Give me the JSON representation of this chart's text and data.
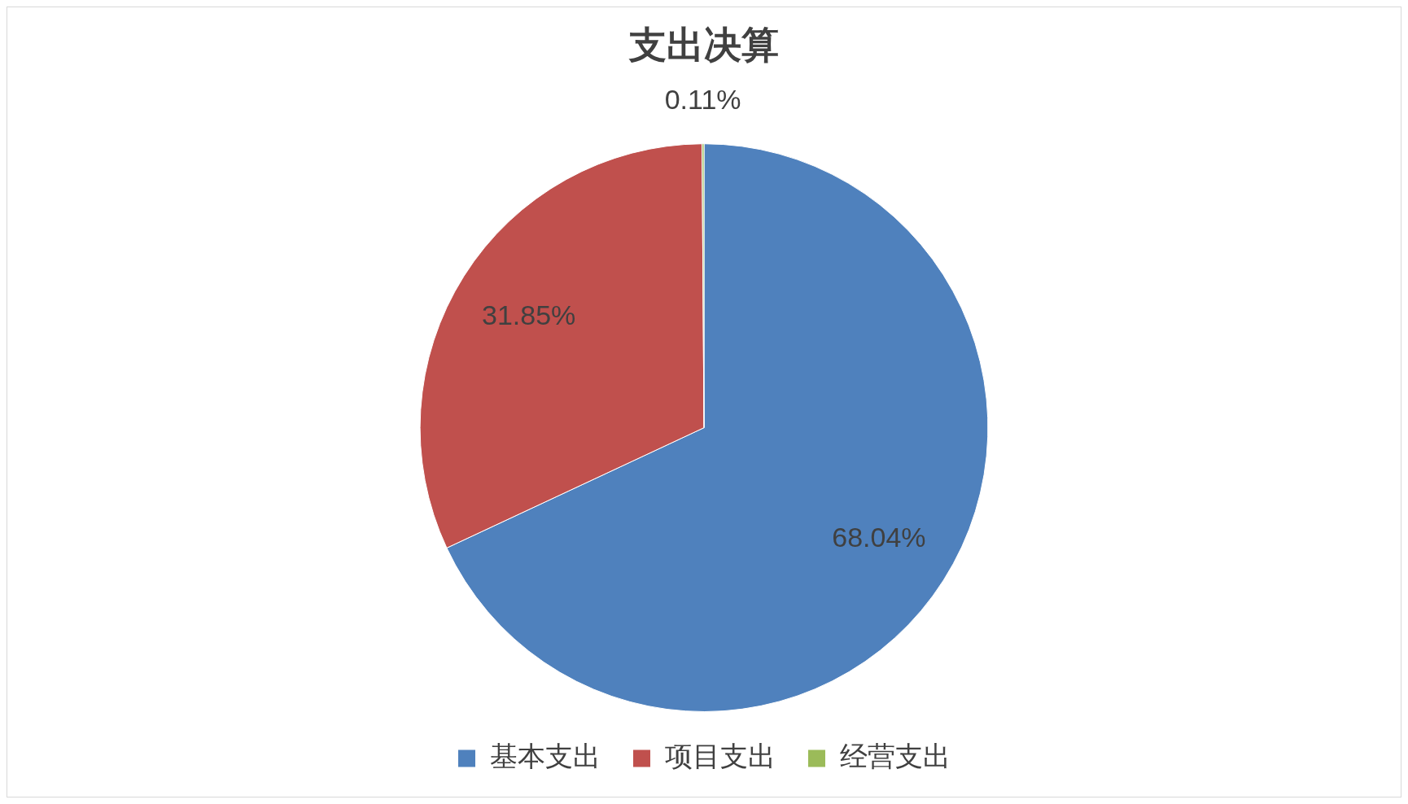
{
  "chart_data": {
    "type": "pie",
    "title": "支出决算",
    "categories": [
      "基本支出",
      "项目支出",
      "经营支出"
    ],
    "values": [
      68.04,
      31.85,
      0.11
    ],
    "colors": [
      "#4f81bd",
      "#c0504d",
      "#9bbb59"
    ],
    "value_labels": [
      "68.04%",
      "31.85%",
      "0.11%"
    ],
    "legend": "bottom"
  }
}
